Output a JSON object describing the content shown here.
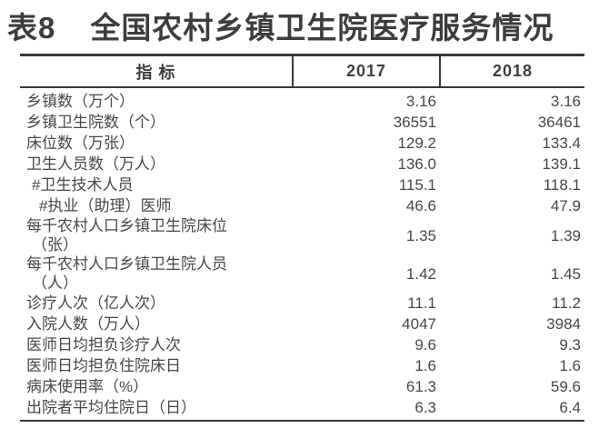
{
  "title": {
    "number": "表8",
    "text": "全国农村乡镇卫生院医疗服务情况"
  },
  "table": {
    "columns": {
      "indicator": "指 标",
      "year1": "2017",
      "year2": "2018"
    },
    "rows": [
      {
        "label": "乡镇数（万个）",
        "indent": 0,
        "v2017": "3.16",
        "v2018": "3.16"
      },
      {
        "label": "乡镇卫生院数（个）",
        "indent": 0,
        "v2017": "36551",
        "v2018": "36461"
      },
      {
        "label": "床位数（万张）",
        "indent": 0,
        "v2017": "129.2",
        "v2018": "133.4"
      },
      {
        "label": "卫生人员数（万人）",
        "indent": 0,
        "v2017": "136.0",
        "v2018": "139.1"
      },
      {
        "label": "#卫生技术人员",
        "indent": 1,
        "v2017": "115.1",
        "v2018": "118.1"
      },
      {
        "label": "#执业（助理）医师",
        "indent": 2,
        "v2017": "46.6",
        "v2018": "47.9"
      },
      {
        "label": "每千农村人口乡镇卫生院床位",
        "label2": "（张）",
        "indent": 0,
        "v2017": "1.35",
        "v2018": "1.39"
      },
      {
        "label": "每千农村人口乡镇卫生院人员",
        "label2": "（人）",
        "indent": 0,
        "v2017": "1.42",
        "v2018": "1.45"
      },
      {
        "label": "诊疗人次（亿人次）",
        "indent": 0,
        "v2017": "11.1",
        "v2018": "11.2"
      },
      {
        "label": "入院人数（万人）",
        "indent": 0,
        "v2017": "4047",
        "v2018": "3984"
      },
      {
        "label": "医师日均担负诊疗人次",
        "indent": 0,
        "v2017": "9.6",
        "v2018": "9.3"
      },
      {
        "label": "医师日均担负住院床日",
        "indent": 0,
        "v2017": "1.6",
        "v2018": "1.6"
      },
      {
        "label": "病床使用率（%）",
        "indent": 0,
        "v2017": "61.3",
        "v2018": "59.6"
      },
      {
        "label": "出院者平均住院日（日）",
        "indent": 0,
        "v2017": "6.3",
        "v2018": "6.4"
      }
    ],
    "colors": {
      "border": "#383838",
      "text": "#474747",
      "title": "#3d3d3d"
    }
  }
}
